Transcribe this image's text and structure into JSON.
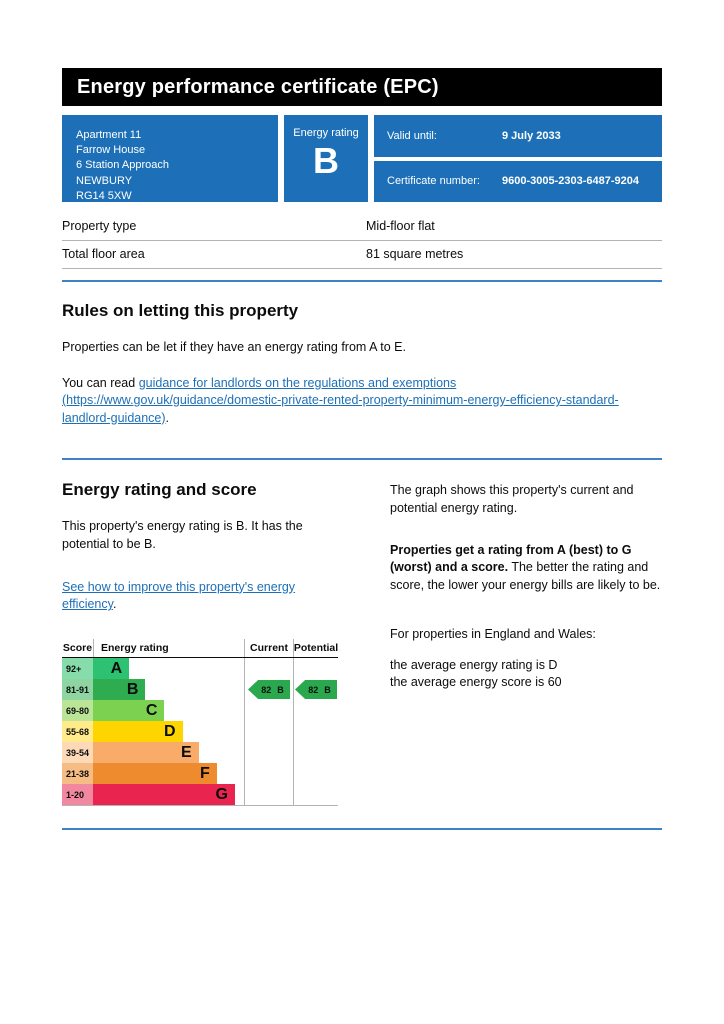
{
  "accent_colors": {
    "govuk_blue": "#1d70b8",
    "banner_black": "#000000",
    "divider_blue": "#3e82c4"
  },
  "banner": {
    "title": "Energy performance certificate (EPC)"
  },
  "summary": {
    "address_lines": [
      "Apartment 11",
      "Farrow House",
      "6 Station Approach",
      "NEWBURY",
      "RG14 5XW"
    ],
    "energy_rating_label": "Energy rating",
    "energy_rating": "B",
    "valid_until_label": "Valid until:",
    "valid_until_value": "9 July 2033",
    "certificate_number_label": "Certificate number:",
    "certificate_number_value": "9600-3005-2303-6487-9204"
  },
  "facts": {
    "rows": [
      {
        "label": "Property type",
        "value": "Mid-floor flat"
      },
      {
        "label": "Total floor area",
        "value": "81 square metres"
      }
    ]
  },
  "rules": {
    "heading": "Rules on letting this property",
    "para1": "Properties can be let if they have an energy rating from A to E.",
    "para2_prefix": "You can read ",
    "para2_link": "guidance for landlords on the regulations and exemptions (https://www.gov.uk/guidance/domestic-private-rented-property-minimum-energy-efficiency-standard-landlord-guidance)",
    "para2_suffix": "."
  },
  "rating_section": {
    "heading": "Energy rating and score",
    "left_para": "This property's energy rating is B. It has the potential to be B.",
    "improve_link": "See how to improve this property's energy efficiency",
    "improve_suffix": ".",
    "graph_intro": "The graph shows this property's current and potential energy rating.",
    "explain_bold": "Properties get a rating from A (best) to G (worst) and a score.",
    "explain_rest": " The better the rating and score, the lower your energy bills are likely to be.",
    "england_wales_intro": "For properties in England and Wales:",
    "average_rating_line": "the average energy rating is D",
    "average_score_line": "the average energy score is 60"
  },
  "chart_data": {
    "type": "bar",
    "title_columns": {
      "score": "Score",
      "rating": "Energy rating",
      "current": "Current",
      "potential": "Potential"
    },
    "bands": [
      {
        "score": "92+",
        "letter": "A",
        "color": "#2dc272",
        "tint": "#86dcab",
        "width_pct": 24
      },
      {
        "score": "81-91",
        "letter": "B",
        "color": "#2fab50",
        "tint": "#8fd5a2",
        "width_pct": 34.7
      },
      {
        "score": "69-80",
        "letter": "C",
        "color": "#7cd151",
        "tint": "#bae597",
        "width_pct": 47.3
      },
      {
        "score": "55-68",
        "letter": "D",
        "color": "#ffd500",
        "tint": "#ffeb8a",
        "width_pct": 59.3
      },
      {
        "score": "39-54",
        "letter": "E",
        "color": "#f9ab69",
        "tint": "#fdd9b8",
        "width_pct": 70
      },
      {
        "score": "21-38",
        "letter": "F",
        "color": "#ee8b2e",
        "tint": "#f5bd84",
        "width_pct": 82
      },
      {
        "score": "1-20",
        "letter": "G",
        "color": "#e9244e",
        "tint": "#f2889f",
        "width_pct": 94
      }
    ],
    "current": {
      "score": 82,
      "band": "B",
      "row": 1,
      "color": "#2aa84d"
    },
    "potential": {
      "score": 82,
      "band": "B",
      "row": 1,
      "color": "#2aa84d"
    }
  }
}
